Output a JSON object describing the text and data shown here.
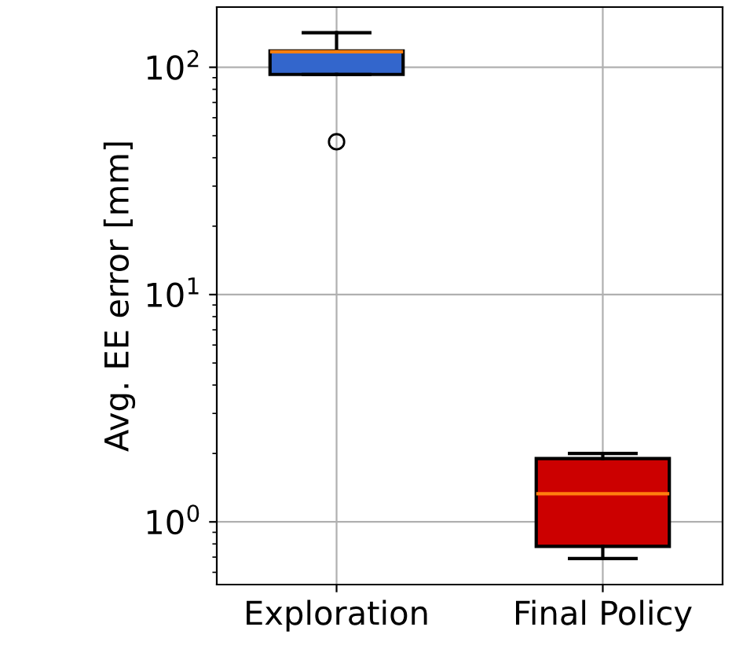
{
  "chart_data": {
    "type": "box",
    "ylabel": "Avg. EE error [mm]",
    "categories": [
      "Exploration",
      "Final Policy"
    ],
    "boxes": [
      {
        "low": 93,
        "q1": 93,
        "median": 117,
        "q3": 118,
        "high": 142,
        "outliers": [
          47
        ]
      },
      {
        "low": 0.69,
        "q1": 0.78,
        "median": 1.33,
        "q3": 1.9,
        "high": 2.0
      }
    ],
    "colors": [
      "#3366cc",
      "#cc0000"
    ],
    "log": true,
    "ylim": [
      0.53,
      184
    ],
    "yticks": [
      {
        "value": 1,
        "label": "10$^{0}$"
      },
      {
        "value": 10,
        "label": "10$^{1}$"
      },
      {
        "value": 100,
        "label": "10$^{2}$"
      }
    ],
    "grid": true
  }
}
